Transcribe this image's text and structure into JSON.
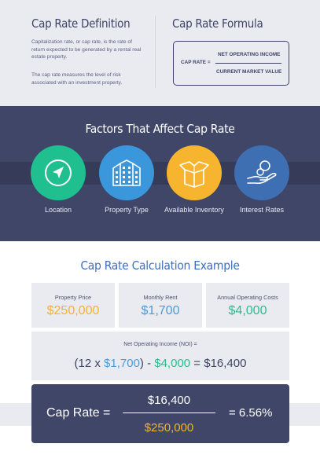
{
  "definition": {
    "title": "Cap Rate Definition",
    "p1": "Capitalization rate, or cap rate, is the rate of return expected to be generated by a rental real estate property.",
    "p2": "The cap rate measures the level of risk associated with an investment property."
  },
  "formula": {
    "title": "Cap Rate Formula",
    "lhs": "CAP RATE =",
    "numerator": "NET OPERATING INCOME",
    "denominator": "CURRENT MARKET VALUE"
  },
  "factors": {
    "title": "Factors That Affect Cap Rate",
    "items": [
      {
        "label": "Location",
        "icon": "location-arrow-icon",
        "color": "#1fbf8f"
      },
      {
        "label": "Property Type",
        "icon": "building-icon",
        "color": "#3a97dc"
      },
      {
        "label": "Available Inventory",
        "icon": "box-icon",
        "color": "#f7b52f"
      },
      {
        "label": "Interest Rates",
        "icon": "money-hand-icon",
        "color": "#3e6fb3"
      }
    ]
  },
  "calculation": {
    "title": "Cap Rate Calculation Example",
    "cards": [
      {
        "label": "Property Price",
        "value": "$250,000",
        "color": "#f4b133"
      },
      {
        "label": "Monthly Rent",
        "value": "$1,700",
        "color": "#4a9ad9"
      },
      {
        "label": "Annual Operating Costs",
        "value": "$4,000",
        "color": "#2dbb8b"
      }
    ],
    "noi": {
      "label": "Net Operating Income (NOI) =",
      "open": "(12 x ",
      "rent": "$1,700",
      "mid": ") - ",
      "costs": "$4,000",
      "end": " = $16,400"
    },
    "result": {
      "lhs": "Cap Rate =",
      "numerator": "$16,400",
      "denominator": "$250,000",
      "value": "= 6.56%"
    }
  }
}
